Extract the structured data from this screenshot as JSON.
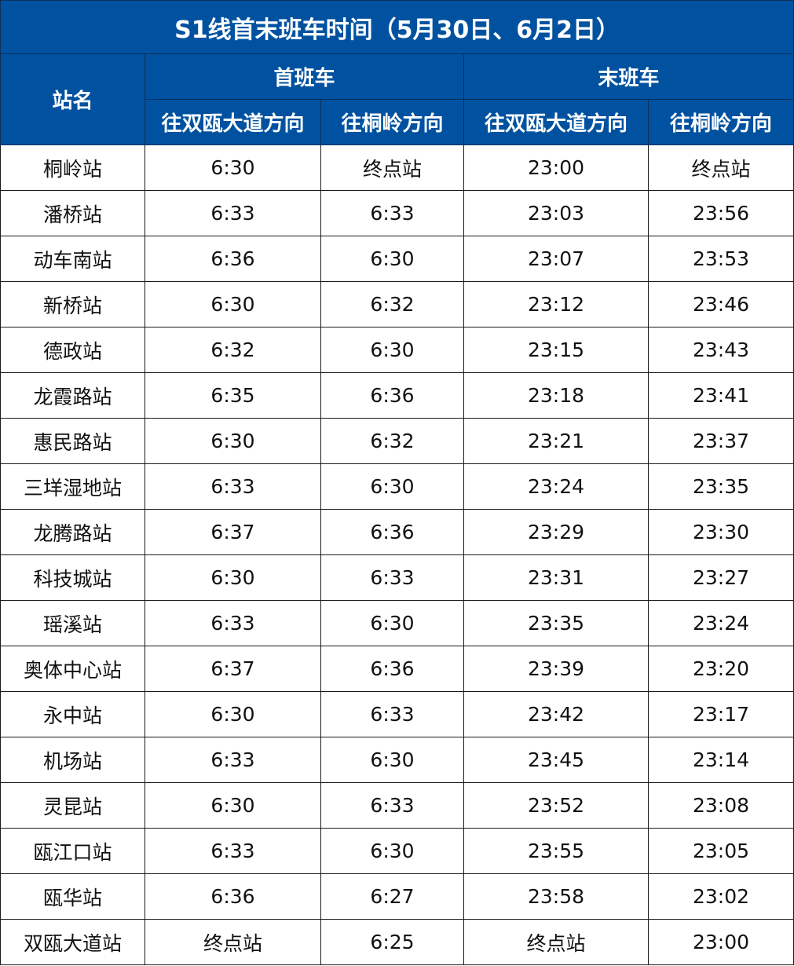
{
  "title": "S1线首末班车时间（5月30日、6月2日）",
  "header": {
    "station_label": "站名",
    "first_train_label": "首班车",
    "last_train_label": "末班车",
    "dir_shuangou_label": "往双瓯大道方向",
    "dir_tongling_label": "往桐岭方向"
  },
  "columns": [
    "站名",
    "首班车 往双瓯大道方向",
    "首班车 往桐岭方向",
    "末班车 往双瓯大道方向",
    "末班车 往桐岭方向"
  ],
  "rows": [
    {
      "station": "桐岭站",
      "first_to_shuangou": "6:30",
      "first_to_tongling": "终点站",
      "last_to_shuangou": "23:00",
      "last_to_tongling": "终点站"
    },
    {
      "station": "潘桥站",
      "first_to_shuangou": "6:33",
      "first_to_tongling": "6:33",
      "last_to_shuangou": "23:03",
      "last_to_tongling": "23:56"
    },
    {
      "station": "动车南站",
      "first_to_shuangou": "6:36",
      "first_to_tongling": "6:30",
      "last_to_shuangou": "23:07",
      "last_to_tongling": "23:53"
    },
    {
      "station": "新桥站",
      "first_to_shuangou": "6:30",
      "first_to_tongling": "6:32",
      "last_to_shuangou": "23:12",
      "last_to_tongling": "23:46"
    },
    {
      "station": "德政站",
      "first_to_shuangou": "6:32",
      "first_to_tongling": "6:30",
      "last_to_shuangou": "23:15",
      "last_to_tongling": "23:43"
    },
    {
      "station": "龙霞路站",
      "first_to_shuangou": "6:35",
      "first_to_tongling": "6:36",
      "last_to_shuangou": "23:18",
      "last_to_tongling": "23:41"
    },
    {
      "station": "惠民路站",
      "first_to_shuangou": "6:30",
      "first_to_tongling": "6:32",
      "last_to_shuangou": "23:21",
      "last_to_tongling": "23:37"
    },
    {
      "station": "三垟湿地站",
      "first_to_shuangou": "6:33",
      "first_to_tongling": "6:30",
      "last_to_shuangou": "23:24",
      "last_to_tongling": "23:35"
    },
    {
      "station": "龙腾路站",
      "first_to_shuangou": "6:37",
      "first_to_tongling": "6:36",
      "last_to_shuangou": "23:29",
      "last_to_tongling": "23:30"
    },
    {
      "station": "科技城站",
      "first_to_shuangou": "6:30",
      "first_to_tongling": "6:33",
      "last_to_shuangou": "23:31",
      "last_to_tongling": "23:27"
    },
    {
      "station": "瑶溪站",
      "first_to_shuangou": "6:33",
      "first_to_tongling": "6:30",
      "last_to_shuangou": "23:35",
      "last_to_tongling": "23:24"
    },
    {
      "station": "奥体中心站",
      "first_to_shuangou": "6:37",
      "first_to_tongling": "6:36",
      "last_to_shuangou": "23:39",
      "last_to_tongling": "23:20"
    },
    {
      "station": "永中站",
      "first_to_shuangou": "6:30",
      "first_to_tongling": "6:33",
      "last_to_shuangou": "23:42",
      "last_to_tongling": "23:17"
    },
    {
      "station": "机场站",
      "first_to_shuangou": "6:33",
      "first_to_tongling": "6:30",
      "last_to_shuangou": "23:45",
      "last_to_tongling": "23:14"
    },
    {
      "station": "灵昆站",
      "first_to_shuangou": "6:30",
      "first_to_tongling": "6:33",
      "last_to_shuangou": "23:52",
      "last_to_tongling": "23:08"
    },
    {
      "station": "瓯江口站",
      "first_to_shuangou": "6:33",
      "first_to_tongling": "6:30",
      "last_to_shuangou": "23:55",
      "last_to_tongling": "23:05"
    },
    {
      "station": "瓯华站",
      "first_to_shuangou": "6:36",
      "first_to_tongling": "6:27",
      "last_to_shuangou": "23:58",
      "last_to_tongling": "23:02"
    },
    {
      "station": "双瓯大道站",
      "first_to_shuangou": "终点站",
      "first_to_tongling": "6:25",
      "last_to_shuangou": "终点站",
      "last_to_tongling": "23:00"
    }
  ]
}
